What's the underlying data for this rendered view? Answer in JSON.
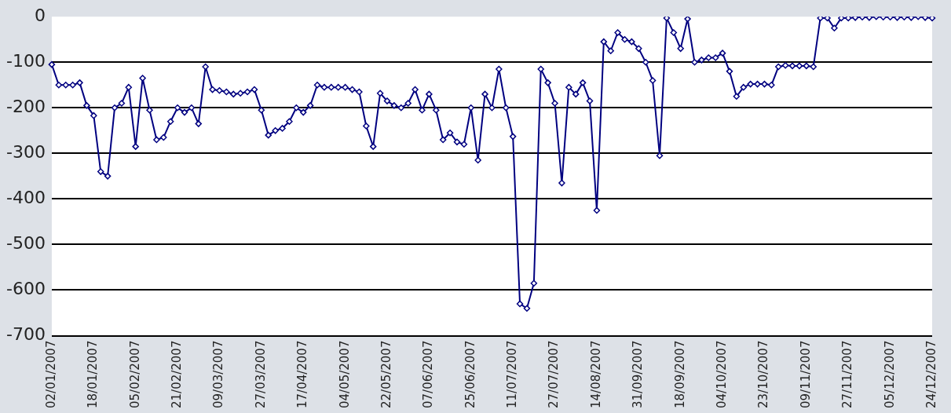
{
  "chart_data": {
    "type": "line",
    "categories": [
      "02/01/2007",
      null,
      null,
      null,
      null,
      null,
      "18/01/2007",
      null,
      null,
      null,
      null,
      null,
      "05/02/2007",
      null,
      null,
      null,
      null,
      null,
      "21/02/2007",
      null,
      null,
      null,
      null,
      null,
      "09/03/2007",
      null,
      null,
      null,
      null,
      null,
      "27/03/2007",
      null,
      null,
      null,
      null,
      null,
      "17/04/2007",
      null,
      null,
      null,
      null,
      null,
      "04/05/2007",
      null,
      null,
      null,
      null,
      null,
      "22/05/2007",
      null,
      null,
      null,
      null,
      null,
      "07/06/2007",
      null,
      null,
      null,
      null,
      null,
      "25/06/2007",
      null,
      null,
      null,
      null,
      null,
      "11/07/2007",
      null,
      null,
      null,
      null,
      null,
      "27/07/2007",
      null,
      null,
      null,
      null,
      null,
      "14/08/2007",
      null,
      null,
      null,
      null,
      null,
      "31/09/2007",
      null,
      null,
      null,
      null,
      null,
      "18/09/2007",
      null,
      null,
      null,
      null,
      null,
      "04/10/2007",
      null,
      null,
      null,
      null,
      null,
      "23/10/2007",
      null,
      null,
      null,
      null,
      null,
      "09/11/2007",
      null,
      null,
      null,
      null,
      null,
      "27/11/2007",
      null,
      null,
      null,
      null,
      null,
      "05/12/2007",
      null,
      null,
      null,
      null,
      null,
      "24/12/2007"
    ],
    "series": [
      {
        "color": "#000080",
        "values": [
          -105,
          -150,
          -150,
          -150,
          -145,
          -195,
          -217,
          -340,
          -350,
          -200,
          -190,
          -155,
          -285,
          -135,
          -205,
          -270,
          -265,
          -230,
          -200,
          -210,
          -200,
          -235,
          -110,
          -160,
          -162,
          -165,
          -170,
          -168,
          -165,
          -160,
          -205,
          -260,
          -250,
          -245,
          -230,
          -200,
          -210,
          -195,
          -150,
          -155,
          -155,
          -155,
          -155,
          -160,
          -165,
          -240,
          -285,
          -168,
          -185,
          -195,
          -200,
          -190,
          -160,
          -205,
          -170,
          -205,
          -270,
          -255,
          -275,
          -280,
          -200,
          -315,
          -170,
          -200,
          -115,
          -200,
          -263,
          -630,
          -640,
          -585,
          -115,
          -145,
          -190,
          -365,
          -155,
          -170,
          -145,
          -185,
          -425,
          -55,
          -75,
          -35,
          -50,
          -55,
          -70,
          -100,
          -140,
          -305,
          -3,
          -35,
          -70,
          -5,
          -100,
          -95,
          -90,
          -90,
          -80,
          -120,
          -175,
          -155,
          -148,
          -148,
          -148,
          -150,
          -110,
          -107,
          -108,
          -108,
          -108,
          -110,
          -3,
          -3,
          -25,
          -3,
          -3,
          -2,
          -1,
          -2,
          0,
          -1,
          -1,
          -2,
          -1,
          -2,
          0,
          -2,
          -3
        ]
      }
    ],
    "ylim": [
      -700,
      0
    ],
    "yticks": [
      0,
      -100,
      -200,
      -300,
      -400,
      -500,
      -600,
      -700
    ],
    "grid": "y",
    "marker": "diamond",
    "line_style": "solid",
    "legend": false
  }
}
